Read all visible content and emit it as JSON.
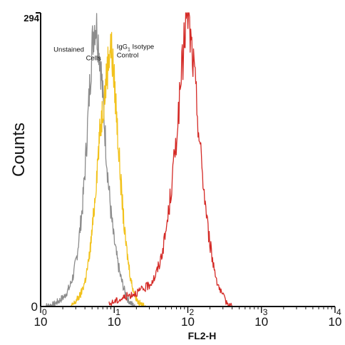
{
  "chart_data": {
    "type": "line",
    "title": "",
    "xlabel": "FL2-H",
    "ylabel": "Counts",
    "xscale": "log",
    "xlim": [
      1,
      10000
    ],
    "ylim": [
      0,
      294
    ],
    "y_ticks": [
      0,
      294
    ],
    "x_ticks": [
      {
        "value": 1,
        "base": "10",
        "exp": "0"
      },
      {
        "value": 10,
        "base": "10",
        "exp": "1"
      },
      {
        "value": 100,
        "base": "10",
        "exp": "2"
      },
      {
        "value": 1000,
        "base": "10",
        "exp": "3"
      },
      {
        "value": 10000,
        "base": "10",
        "exp": "4"
      }
    ],
    "grid": false,
    "annotations": [
      {
        "lines": [
          "Unstained",
          "Cells"
        ],
        "x": 1.5,
        "y": 255
      },
      {
        "lines": [
          "IgG",
          "1",
          " Isotype",
          "Control"
        ],
        "x": 10.8,
        "y": 258
      }
    ],
    "series": [
      {
        "color": "#8c8c8c",
        "points": [
          [
            1.1,
            0
          ],
          [
            1.5,
            2
          ],
          [
            1.8,
            6
          ],
          [
            2.1,
            10
          ],
          [
            2.5,
            20
          ],
          [
            2.8,
            32
          ],
          [
            3.1,
            50
          ],
          [
            3.4,
            75
          ],
          [
            3.7,
            100
          ],
          [
            4.0,
            135
          ],
          [
            4.3,
            175
          ],
          [
            4.6,
            215
          ],
          [
            4.9,
            250
          ],
          [
            5.2,
            275
          ],
          [
            5.5,
            285
          ],
          [
            5.8,
            278
          ],
          [
            6.1,
            265
          ],
          [
            6.4,
            250
          ],
          [
            6.8,
            225
          ],
          [
            7.2,
            195
          ],
          [
            7.7,
            160
          ],
          [
            8.3,
            125
          ],
          [
            9.0,
            95
          ],
          [
            9.8,
            70
          ],
          [
            10.8,
            50
          ],
          [
            12.0,
            32
          ],
          [
            13.5,
            18
          ],
          [
            15.0,
            8
          ],
          [
            17.0,
            3
          ],
          [
            19.0,
            0
          ]
        ]
      },
      {
        "color": "#f2c21c",
        "points": [
          [
            2.6,
            0
          ],
          [
            3.0,
            5
          ],
          [
            3.5,
            12
          ],
          [
            4.0,
            25
          ],
          [
            4.5,
            45
          ],
          [
            5.0,
            75
          ],
          [
            5.5,
            110
          ],
          [
            6.0,
            150
          ],
          [
            6.5,
            180
          ],
          [
            7.0,
            200
          ],
          [
            7.5,
            215
          ],
          [
            8.0,
            235
          ],
          [
            8.5,
            255
          ],
          [
            9.0,
            262
          ],
          [
            9.5,
            245
          ],
          [
            10.0,
            225
          ],
          [
            10.6,
            200
          ],
          [
            11.2,
            170
          ],
          [
            12.0,
            135
          ],
          [
            13.0,
            100
          ],
          [
            14.0,
            70
          ],
          [
            15.5,
            45
          ],
          [
            17.0,
            25
          ],
          [
            19.0,
            12
          ],
          [
            21.0,
            5
          ],
          [
            24.0,
            1
          ],
          [
            27.0,
            0
          ]
        ]
      },
      {
        "color": "#d42a26",
        "points": [
          [
            8.5,
            2
          ],
          [
            10.0,
            5
          ],
          [
            12.0,
            7
          ],
          [
            14.5,
            10
          ],
          [
            17.0,
            12
          ],
          [
            20.0,
            14
          ],
          [
            23.0,
            16
          ],
          [
            26.0,
            18
          ],
          [
            30.0,
            22
          ],
          [
            36.0,
            30
          ],
          [
            42.0,
            45
          ],
          [
            48.0,
            65
          ],
          [
            55.0,
            95
          ],
          [
            60.0,
            120
          ],
          [
            66.0,
            150
          ],
          [
            72.0,
            180
          ],
          [
            78.0,
            210
          ],
          [
            84.0,
            240
          ],
          [
            90.0,
            270
          ],
          [
            96.0,
            290
          ],
          [
            100.0,
            294
          ],
          [
            106.0,
            275
          ],
          [
            112.0,
            260
          ],
          [
            118.0,
            245
          ],
          [
            125.0,
            225
          ],
          [
            133.0,
            200
          ],
          [
            142.0,
            172
          ],
          [
            155.0,
            140
          ],
          [
            170.0,
            108
          ],
          [
            190.0,
            75
          ],
          [
            215.0,
            48
          ],
          [
            245.0,
            28
          ],
          [
            280.0,
            14
          ],
          [
            330.0,
            5
          ],
          [
            400.0,
            0
          ]
        ]
      }
    ]
  }
}
